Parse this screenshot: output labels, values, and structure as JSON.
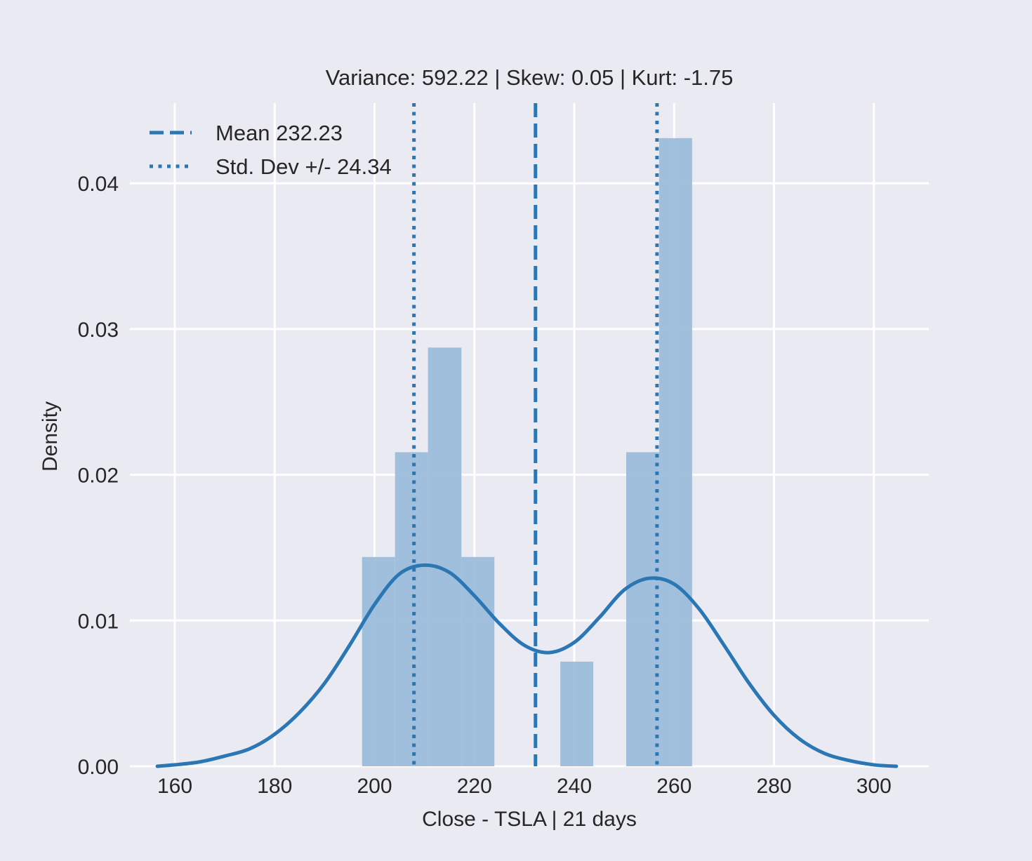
{
  "chart_data": {
    "type": "histogram",
    "title": "Variance: 592.22 | Skew: 0.05 | Kurt: -1.75",
    "xlabel": "Close - TSLA | 21 days",
    "ylabel": "Density",
    "xlim": [
      151,
      311
    ],
    "ylim": [
      0,
      0.0455
    ],
    "xticks": [
      160,
      180,
      200,
      220,
      240,
      260,
      280,
      300
    ],
    "xtick_labels": [
      "160",
      "180",
      "200",
      "220",
      "240",
      "260",
      "280",
      "300"
    ],
    "yticks": [
      0.0,
      0.01,
      0.02,
      0.03,
      0.04
    ],
    "ytick_labels": [
      "0.00",
      "0.01",
      "0.02",
      "0.03",
      "0.04"
    ],
    "grid": true,
    "bins": [
      {
        "x0": 197.5,
        "x1": 204.1,
        "density": 0.01436
      },
      {
        "x0": 204.1,
        "x1": 210.7,
        "density": 0.02155
      },
      {
        "x0": 210.7,
        "x1": 217.4,
        "density": 0.02873
      },
      {
        "x0": 217.4,
        "x1": 224.0,
        "density": 0.01436
      },
      {
        "x0": 224.0,
        "x1": 230.6,
        "density": 0.0
      },
      {
        "x0": 230.6,
        "x1": 237.2,
        "density": 0.0
      },
      {
        "x0": 237.2,
        "x1": 243.8,
        "density": 0.00718
      },
      {
        "x0": 243.8,
        "x1": 250.4,
        "density": 0.0
      },
      {
        "x0": 250.4,
        "x1": 257.0,
        "density": 0.02155
      },
      {
        "x0": 257.0,
        "x1": 263.6,
        "density": 0.0431
      }
    ],
    "kde": {
      "x": [
        156.5,
        160,
        165,
        170,
        175,
        180,
        185,
        190,
        195,
        200,
        205,
        210,
        215,
        220,
        225,
        230,
        235,
        240,
        245,
        250,
        255,
        260,
        265,
        270,
        275,
        280,
        285,
        290,
        295,
        300,
        304.5
      ],
      "y": [
        0.0,
        0.0001,
        0.0003,
        0.0007,
        0.0012,
        0.0022,
        0.0037,
        0.0057,
        0.0083,
        0.0111,
        0.0132,
        0.0138,
        0.0133,
        0.0117,
        0.0098,
        0.0083,
        0.0078,
        0.0085,
        0.0102,
        0.0121,
        0.0129,
        0.0125,
        0.0108,
        0.0083,
        0.0057,
        0.0035,
        0.0019,
        0.0009,
        0.0004,
        0.0001,
        0.0
      ]
    },
    "mean": 232.23,
    "std": 24.34,
    "legend": {
      "position": "top-left",
      "entries": [
        {
          "label": "Mean 232.23",
          "style": "dashed"
        },
        {
          "label": "Std. Dev +/- 24.34",
          "style": "dotted"
        }
      ]
    },
    "colors": {
      "background": "#eaeaf2",
      "grid": "#ffffff",
      "bar": "#9cbddb",
      "line": "#2a77b4",
      "text": "#262626"
    }
  }
}
